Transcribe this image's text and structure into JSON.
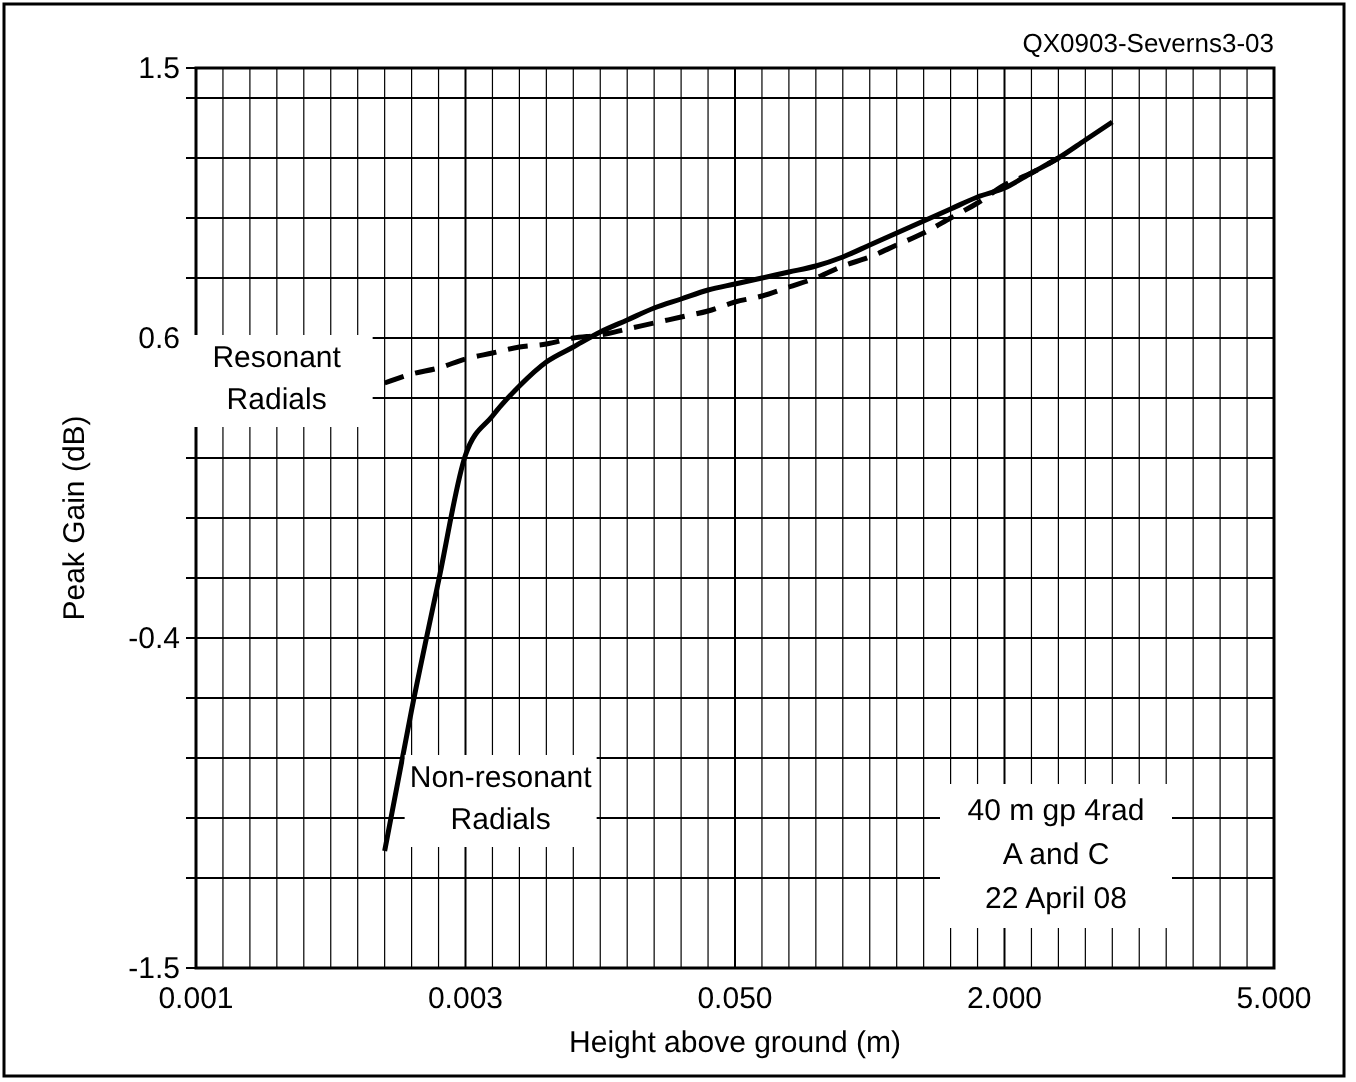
{
  "chart_data": {
    "type": "line",
    "xlabel": "Height above ground (m)",
    "ylabel": "Peak Gain (dB)",
    "categories": [
      "0.001",
      null,
      null,
      null,
      null,
      null,
      null,
      null,
      null,
      null,
      "0.003",
      null,
      null,
      null,
      null,
      null,
      null,
      null,
      null,
      null,
      "0.050",
      null,
      null,
      null,
      null,
      null,
      null,
      null,
      null,
      null,
      "2.000",
      null,
      null,
      null,
      null,
      null,
      null,
      null,
      null,
      null,
      "5.000"
    ],
    "ylim": [
      -1.5,
      1.5
    ],
    "yticks": [
      -1.5,
      {
        "value": -1.2,
        "label": null
      },
      {
        "value": -1.0,
        "label": null
      },
      {
        "value": -0.8,
        "label": null
      },
      {
        "value": -0.6,
        "label": null
      },
      -0.4,
      {
        "value": -0.2,
        "label": null
      },
      {
        "value": 0.0,
        "label": null
      },
      {
        "value": 0.2,
        "label": null
      },
      {
        "value": 0.4,
        "label": null
      },
      0.6,
      {
        "value": 0.8,
        "label": null
      },
      {
        "value": 1.0,
        "label": null
      },
      {
        "value": 1.2,
        "label": null
      },
      {
        "value": 1.4,
        "label": null
      },
      1.5
    ],
    "grid": true,
    "legend": false,
    "series": [
      {
        "name": "Non-resonant Radials",
        "color": "#000000",
        "line_style": "solid",
        "values": [
          null,
          null,
          null,
          null,
          null,
          null,
          null,
          -1.11,
          -0.64,
          -0.21,
          0.21,
          0.34,
          0.44,
          0.52,
          0.57,
          0.62,
          0.66,
          0.7,
          0.73,
          0.76,
          0.78,
          0.8,
          0.82,
          0.84,
          0.87,
          0.91,
          0.95,
          0.99,
          1.03,
          1.07,
          1.1,
          1.15,
          1.2,
          1.26,
          1.32,
          null,
          null,
          null,
          null,
          null,
          null
        ]
      },
      {
        "name": "Resonant Radials",
        "color": "#000000",
        "line_style": "dashed",
        "values": [
          null,
          null,
          null,
          null,
          null,
          null,
          null,
          0.45,
          0.48,
          0.5,
          0.53,
          0.55,
          0.57,
          0.58,
          0.6,
          0.61,
          0.63,
          0.65,
          0.67,
          0.69,
          0.72,
          0.74,
          0.77,
          0.8,
          0.84,
          0.87,
          0.91,
          0.95,
          1.0,
          1.05,
          1.11,
          1.15,
          1.2,
          null,
          null,
          null,
          null,
          null,
          null,
          null,
          null
        ]
      }
    ],
    "annotations": [
      "QX0903-Severns3-03",
      "40 m gp 4rad\nA and C\n22 April 08"
    ]
  }
}
